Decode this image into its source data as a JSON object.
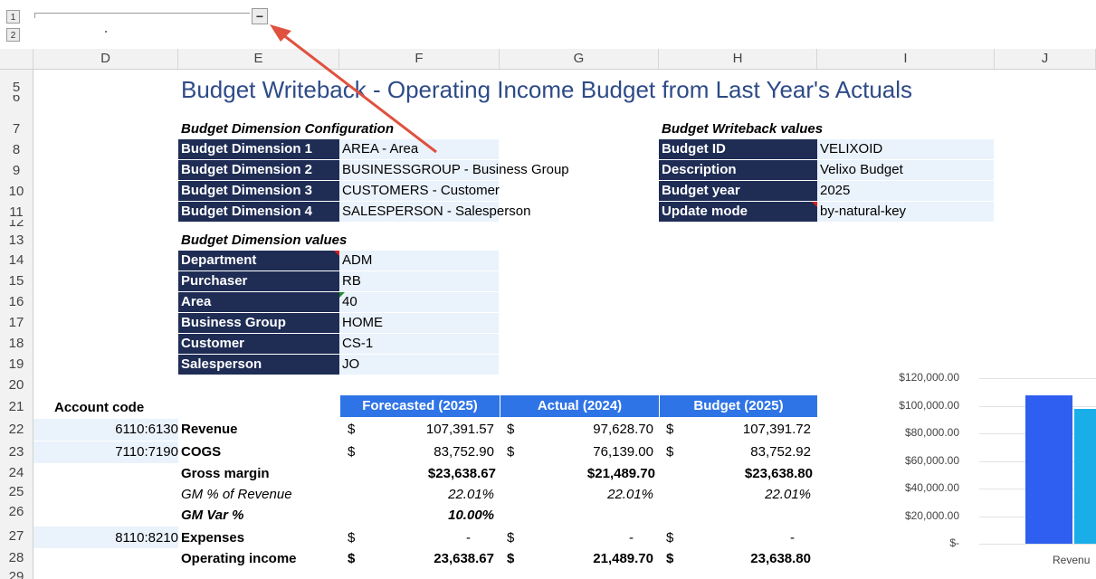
{
  "outline": {
    "level1": "1",
    "level2": "2",
    "collapse": "−"
  },
  "columns": [
    "D",
    "E",
    "F",
    "G",
    "H",
    "I",
    "J"
  ],
  "rows": [
    "5",
    "6",
    "7",
    "8",
    "9",
    "10",
    "11",
    "12",
    "13",
    "14",
    "15",
    "16",
    "17",
    "18",
    "19",
    "20",
    "21",
    "22",
    "23",
    "24",
    "25",
    "26",
    "27",
    "28",
    "29"
  ],
  "title": "Budget Writeback - Operating Income Budget from Last Year's Actuals",
  "dim_config": {
    "heading": "Budget Dimension Configuration",
    "items": [
      {
        "label": "Budget Dimension 1",
        "value": "AREA - Area"
      },
      {
        "label": "Budget Dimension 2",
        "value": "BUSINESSGROUP - Business Group"
      },
      {
        "label": "Budget Dimension 3",
        "value": "CUSTOMERS - Customer"
      },
      {
        "label": "Budget Dimension 4",
        "value": "SALESPERSON - Salesperson"
      }
    ]
  },
  "writeback": {
    "heading": "Budget Writeback values",
    "items": [
      {
        "label": "Budget ID",
        "value": "VELIXOID"
      },
      {
        "label": "Description",
        "value": "Velixo Budget"
      },
      {
        "label": "Budget year",
        "value": "2025"
      },
      {
        "label": "Update mode",
        "value": "by-natural-key"
      }
    ]
  },
  "dim_values": {
    "heading": "Budget Dimension values",
    "items": [
      {
        "label": "Department",
        "value": "ADM"
      },
      {
        "label": "Purchaser",
        "value": "RB"
      },
      {
        "label": "Area",
        "value": "40"
      },
      {
        "label": "Business Group",
        "value": "HOME"
      },
      {
        "label": "Customer",
        "value": "CS-1"
      },
      {
        "label": "Salesperson",
        "value": "JO"
      }
    ]
  },
  "table": {
    "account_code_header": "Account code",
    "headers": [
      "Forecasted (2025)",
      "Actual (2024)",
      "Budget (2025)"
    ],
    "currency": "$",
    "rows": [
      {
        "code": "6110:6130",
        "label": "Revenue",
        "f": "107,391.57",
        "a": "97,628.70",
        "b": "107,391.72"
      },
      {
        "code": "7110:7190",
        "label": "COGS",
        "f": "83,752.90",
        "a": "76,139.00",
        "b": "83,752.92"
      },
      {
        "label": "Gross margin",
        "f": "$23,638.67",
        "a": "$21,489.70",
        "b": "$23,638.80"
      },
      {
        "label": "GM % of Revenue",
        "f": "22.01%",
        "a": "22.01%",
        "b": "22.01%"
      },
      {
        "label": "GM Var %",
        "f": "10.00%"
      },
      {
        "code": "8110:8210",
        "label": "Expenses",
        "f": "-",
        "a": "-",
        "b": "-"
      },
      {
        "label": "Operating income",
        "f": "23,638.67",
        "a": "21,489.70",
        "b": "23,638.80"
      }
    ]
  },
  "chart_data": {
    "type": "bar",
    "categories": [
      "Revenu"
    ],
    "series": [
      {
        "values": [
          107391.57
        ],
        "color": "#2f5ff0"
      },
      {
        "values": [
          97628.7
        ],
        "color": "#19aee8"
      }
    ],
    "yticks": [
      "$120,000.00",
      "$100,000.00",
      "$80,000.00",
      "$60,000.00",
      "$40,000.00",
      "$20,000.00",
      "$-"
    ],
    "ylim": [
      0,
      120000
    ]
  },
  "colors": {
    "dark": "#1f2d55",
    "light": "#eaf3fc",
    "header_blue": "#2f74e6",
    "title": "#2e4b87",
    "arrow": "#e0513f"
  }
}
